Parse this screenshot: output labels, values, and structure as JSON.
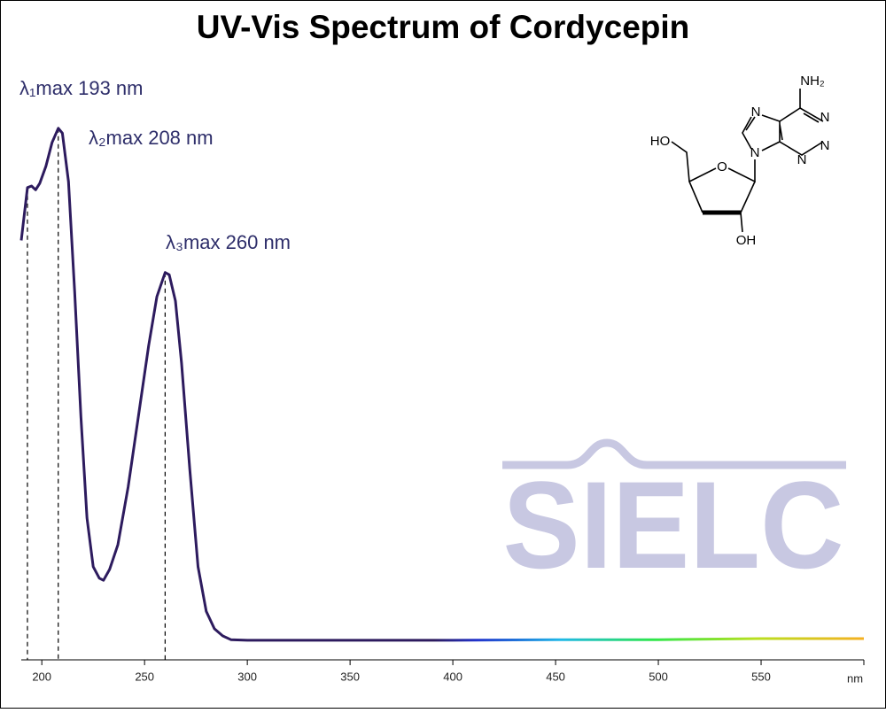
{
  "chart_data": {
    "type": "line",
    "title": "UV-Vis Spectrum of Cordycepin",
    "x": [
      190,
      193,
      195,
      197,
      199,
      202,
      205,
      208,
      210,
      213,
      216,
      219,
      222,
      225,
      228,
      230,
      233,
      237,
      242,
      247,
      252,
      256,
      260,
      262,
      265,
      268,
      272,
      276,
      280,
      284,
      288,
      292,
      300,
      350,
      400,
      450,
      500,
      550,
      600
    ],
    "values": [
      0.77,
      0.867,
      0.87,
      0.863,
      0.875,
      0.906,
      0.95,
      0.976,
      0.967,
      0.878,
      0.675,
      0.447,
      0.26,
      0.171,
      0.15,
      0.146,
      0.166,
      0.211,
      0.317,
      0.447,
      0.577,
      0.667,
      0.711,
      0.707,
      0.659,
      0.545,
      0.35,
      0.171,
      0.089,
      0.057,
      0.044,
      0.037,
      0.036,
      0.036,
      0.036,
      0.037,
      0.037,
      0.039,
      0.039
    ],
    "color": "#2d1b5e",
    "xlim": [
      190,
      600
    ],
    "ylim": [
      0,
      1
    ],
    "xticks": [
      200,
      250,
      300,
      350,
      400,
      450,
      500,
      550,
      {
        "value": 600,
        "label": "nm"
      }
    ],
    "annotations": [
      {
        "label": "λ₁max 193 nm",
        "x": 193
      },
      {
        "label": "λ₂max 208 nm",
        "x": 208
      },
      {
        "label": "λ₃max 260 nm",
        "x": 260
      }
    ],
    "watermark": "SIELC",
    "structure": {
      "labels": [
        "NH₂",
        "N",
        "N",
        "N",
        "N",
        "N",
        "O",
        "HO",
        "OH"
      ]
    }
  }
}
